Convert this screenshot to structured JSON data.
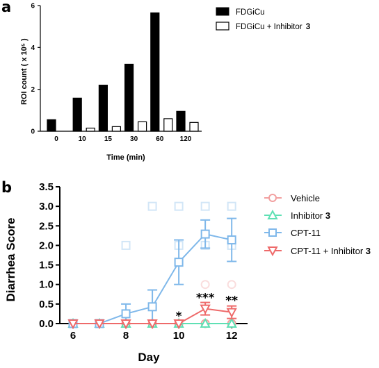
{
  "panels": {
    "a": {
      "letter": "a",
      "legend": {
        "series1": "FDGiCu",
        "series2_prefix": "FDGiCu + Inhibitor ",
        "series2_bold": "3"
      }
    },
    "b": {
      "letter": "b",
      "legend": {
        "vehicle": "Vehicle",
        "inhibitor_prefix": "Inhibitor ",
        "inhibitor_bold": "3",
        "cpt": "CPT-11",
        "combo_prefix": "CPT-11 + Inhibitor ",
        "combo_bold": "3"
      }
    }
  },
  "colors": {
    "bar_black": "#000000",
    "bar_white": "#ffffff",
    "vehicle": "#f2a0a0",
    "inhibitor": "#5fe0b4",
    "cpt": "#7fb8ea",
    "combo": "#ee6a6a"
  },
  "chart_data": [
    {
      "type": "bar",
      "panel": "a",
      "categories": [
        "0",
        "10",
        "15",
        "30",
        "60",
        "120"
      ],
      "series": [
        {
          "name": "FDGiCu",
          "values": [
            0.55,
            1.58,
            2.2,
            3.2,
            5.65,
            0.95
          ]
        },
        {
          "name": "FDGiCu + Inhibitor 3",
          "values": [
            null,
            0.15,
            0.22,
            0.45,
            0.6,
            0.42
          ]
        }
      ],
      "xlabel": "Time (min)",
      "ylabel": "ROI count ( x 10⁵ )",
      "ylim": [
        0,
        6
      ],
      "yticks": [
        0,
        2,
        4,
        6
      ]
    },
    {
      "type": "line",
      "panel": "b",
      "x": [
        6,
        7,
        8,
        9,
        10,
        11,
        12
      ],
      "series": [
        {
          "name": "Vehicle",
          "marker": "circle",
          "values": [
            0,
            0,
            0,
            0,
            0,
            0,
            0
          ],
          "err": [
            0,
            0,
            0,
            0,
            0,
            0,
            0
          ],
          "points": [
            [
              11,
              1.0
            ],
            [
              12,
              1.0
            ]
          ]
        },
        {
          "name": "Inhibitor 3",
          "marker": "triangle-up",
          "values": [
            0,
            0,
            0,
            0,
            0,
            0,
            0
          ],
          "err": [
            0,
            0,
            0,
            0,
            0,
            0,
            0
          ],
          "points": []
        },
        {
          "name": "CPT-11",
          "marker": "square",
          "values": [
            0,
            0,
            0.25,
            0.43,
            1.57,
            2.29,
            2.14
          ],
          "err": [
            0,
            0,
            0.25,
            0.43,
            0.57,
            0.36,
            0.55
          ],
          "points": [
            [
              8,
              2.0
            ],
            [
              9,
              3.0
            ],
            [
              10,
              3.0
            ],
            [
              10,
              2.0
            ],
            [
              11,
              3.0
            ],
            [
              11,
              2.0
            ],
            [
              12,
              3.0
            ],
            [
              12,
              2.0
            ]
          ]
        },
        {
          "name": "CPT-11 + Inhibitor 3",
          "marker": "triangle-down",
          "values": [
            0,
            0,
            0,
            0,
            0,
            0.38,
            0.29
          ],
          "err": [
            0,
            0,
            0,
            0,
            0,
            0.16,
            0.16
          ],
          "points": []
        }
      ],
      "significance": [
        {
          "x": 10,
          "label": "*",
          "y": 0.05
        },
        {
          "x": 11,
          "label": "***",
          "y": 0.52
        },
        {
          "x": 12,
          "label": "**",
          "y": 0.45
        }
      ],
      "xlabel": "Day",
      "ylabel": "Diarrhea Score",
      "xlim": [
        5.5,
        12.6
      ],
      "ylim": [
        0,
        3.5
      ],
      "xticks": [
        6,
        8,
        10,
        12
      ],
      "yticks": [
        "0.0",
        "0.5",
        "1.0",
        "1.5",
        "2.0",
        "2.5",
        "3.0",
        "3.5"
      ]
    }
  ]
}
